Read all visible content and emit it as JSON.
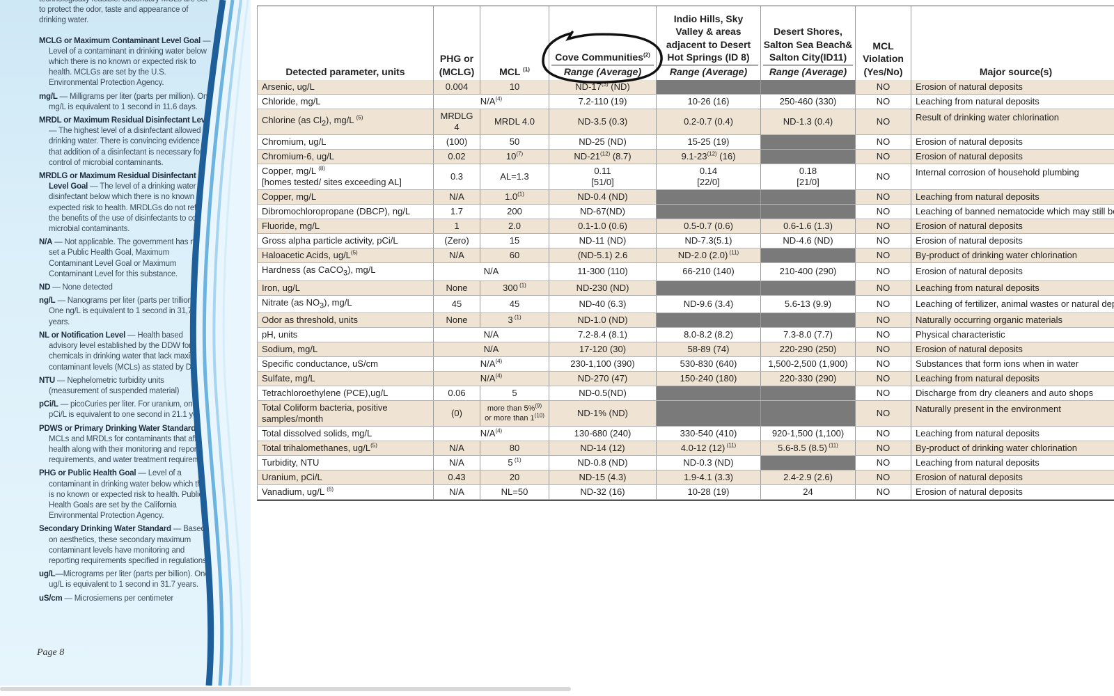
{
  "glossary": {
    "intro": "technologically feasible. Secondary MCLs are set to protect the odor, taste and appearance of drinking water.",
    "entries": [
      {
        "term": "MCLG or Maximum Contaminant Level Goal",
        "text": " — Level of a contaminant in drinking water below which there is no known or expected risk to health. MCLGs are set by the U.S. Environmental Protection Agency."
      },
      {
        "term": "mg/L",
        "text": " — Milligrams per liter (parts per million). One mg/L is equivalent to 1 second in 11.6 days."
      },
      {
        "term": "MRDL or Maximum Residual Disinfectant Level",
        "text": " — The highest level of a disinfectant allowed in drinking water. There is convincing evidence that addition of a disinfectant is necessary for control of microbial contaminants."
      },
      {
        "term": "MRDLG or Maximum Residual Disinfectant Level Goal",
        "text": " — The level of a drinking water disinfectant below which there is no known or expected risk to health. MRDLGs do not reflect the benefits of the use of disinfectants to control microbial contaminants."
      },
      {
        "term": "N/A",
        "text": " — Not applicable. The government has not set a Public Health Goal, Maximum Contaminant Level Goal or Maximum Contaminant Level for this substance."
      },
      {
        "term": "ND",
        "text": " — None detected"
      },
      {
        "term": "ng/L",
        "text": " — Nanograms per liter (parts per trillion). One ng/L is equivalent to 1 second in 31,700 years."
      },
      {
        "term": "NL or Notification Level",
        "text": " — Health based advisory level established by the DDW for chemicals in drinking water that lack maximum contaminant levels (MCLs) as stated by DDW."
      },
      {
        "term": "NTU",
        "text": " — Nephelometric turbidity units (measurement of suspended material)"
      },
      {
        "term": "pCi/L",
        "text": " — picoCuries per liter. For uranium, one pCi/L is equivalent to one second in 21.1 years."
      },
      {
        "term": "PDWS or Primary Drinking Water Standard",
        "text": " — MCLs and MRDLs for contaminants that affect health along with their monitoring and reporting requirements, and water treatment requirement."
      },
      {
        "term": "PHG or Public Health Goal",
        "text": " — Level of a contaminant in drinking water below which there is no known or expected risk to health. Public Health Goals are set by the California Environmental Protection Agency."
      },
      {
        "term": "Secondary Drinking Water Standard",
        "text": " — Based on aesthetics, these secondary maximum contaminant levels have monitoring and reporting requirements specified in regulations."
      },
      {
        "term": "ug/L",
        "text": "—Micrograms per liter (parts per billion). One ug/L is equivalent to 1 second in 31.7 years."
      },
      {
        "term": "uS/cm",
        "text": " — Microsiemens per centimeter"
      }
    ],
    "page_label": "Page 8"
  },
  "table": {
    "headers": {
      "param": "Detected parameter, units",
      "phg_line1": "PHG or",
      "phg_line2": "(MCLG)",
      "mcl": "MCL",
      "mcl_sup": "(1)",
      "cove": "Cove Communities",
      "cove_sup": "(2)",
      "cove_sub": "Range (Average)",
      "indio": "Indio Hills, Sky Valley & areas adjacent to Desert Hot Springs (ID 8)",
      "indio_sub": "Range (Average)",
      "desert": "Desert Shores, Salton Sea Beach& Salton City(ID11)",
      "desert_sub": "Range (Average)",
      "violation_line1": "MCL",
      "violation_line2": "Violation",
      "violation_line3": "(Yes/No)",
      "source": "Major source(s)"
    },
    "rows": [
      {
        "param": "Arsenic, ug/L",
        "phg": "0.004",
        "mcl": "10",
        "cove": "ND-17",
        "cove_sup": "(3)",
        "cove_tail": " (ND)",
        "indio": "",
        "desert": "",
        "indio_gray": true,
        "desert_gray": true,
        "viol": "NO",
        "src": "Erosion of natural deposits"
      },
      {
        "param": "Chloride, mg/L",
        "span": "N/A",
        "span_sup": "(4)",
        "cove": "7.2-110 (19)",
        "indio": "10-26 (16)",
        "desert": "250-460 (330)",
        "viol": "NO",
        "src": "Leaching from natural deposits"
      },
      {
        "param_pre": "Chlorine (as Cl",
        "param_sub": "2",
        "param_post": "), mg/L ",
        "param_sup": "(5)",
        "phg": "MRDLG 4",
        "mcl": "MRDL 4.0",
        "cove": "ND-3.5 (0.3)",
        "indio": "0.2-0.7 (0.4)",
        "desert": "ND-1.3 (0.4)",
        "viol": "NO",
        "src": "Result of drinking water chlorination"
      },
      {
        "param": "Chromium, ug/L",
        "phg": "(100)",
        "mcl": "50",
        "cove": "ND-25 (ND)",
        "indio": "15-25 (19)",
        "desert": "",
        "desert_gray": true,
        "viol": "NO",
        "src": "Erosion of natural deposits"
      },
      {
        "param": "Chromium-6, ug/L",
        "phg": "0.02",
        "mcl": "10",
        "mcl_sup": "(7)",
        "cove": "ND-21",
        "cove_sup": "(12)",
        "cove_tail": " (8.7)",
        "indio": "9.1-23",
        "indio_sup": "(12)",
        "indio_tail": " (16)",
        "desert": "",
        "desert_gray": true,
        "viol": "NO",
        "src": "Erosion of natural deposits"
      },
      {
        "param": "Copper, mg/L ",
        "param_sup": "(8)",
        "param_line2": "[homes tested/ sites exceeding AL]",
        "phg": "0.3",
        "mcl": "AL=1.3",
        "cove": "0.11",
        "cove_line2": "[51/0]",
        "indio": "0.14",
        "indio_line2": "[22/0]",
        "desert": "0.18",
        "desert_line2": "[21/0]",
        "viol": "NO",
        "src": "Internal corrosion of household plumbing"
      },
      {
        "param": "Copper, mg/L",
        "phg": "N/A",
        "mcl": "1.0",
        "mcl_sup": "(1)",
        "cove": "ND-0.4 (ND)",
        "indio": "",
        "desert": "",
        "indio_gray": true,
        "desert_gray": true,
        "viol": "NO",
        "src": "Leaching from natural deposits"
      },
      {
        "param": "Dibromochloropropane (DBCP), ng/L",
        "phg": "1.7",
        "mcl": "200",
        "cove": "ND-67(ND)",
        "indio": "",
        "desert": "",
        "indio_gray": true,
        "desert_gray": true,
        "viol": "NO",
        "src": "Leaching of banned nematocide which may still be"
      },
      {
        "param": "Fluoride, mg/L",
        "phg": "1",
        "mcl": "2.0",
        "cove": "0.1-1.0 (0.6)",
        "indio": "0.5-0.7 (0.6)",
        "desert": "0.6-1.6 (1.3)",
        "viol": "NO",
        "src": "Erosion of natural deposits"
      },
      {
        "param": "Gross alpha particle activity, pCi/L",
        "phg": "(Zero)",
        "mcl": "15",
        "cove": "ND-11 (ND)",
        "indio": "ND-7.3(5.1)",
        "desert": "ND-4.6 (ND)",
        "viol": "NO",
        "src": "Erosion of natural deposits"
      },
      {
        "param": "Haloacetic Acids, ug/L",
        "param_sup": "(5)",
        "phg": "N/A",
        "mcl": "60",
        "cove": "(ND-5.1) 2.6",
        "indio": "ND-2.0 (2.0)",
        "indio_sup": " (11)",
        "desert": "",
        "desert_gray": true,
        "viol": "NO",
        "src": "By-product of drinking water chlorination"
      },
      {
        "param_pre": "Hardness (as CaCO",
        "param_sub": "3",
        "param_post": "), mg/L",
        "span": "N/A",
        "cove": "11-300 (110)",
        "indio": "66-210 (140)",
        "desert": "210-400 (290)",
        "viol": "NO",
        "src": "Erosion of natural deposits"
      },
      {
        "param": "Iron, ug/L",
        "phg": "None",
        "mcl": "300",
        "mcl_sup": " (1)",
        "cove": "ND-230 (ND)",
        "indio": "",
        "desert": "",
        "indio_gray": true,
        "desert_gray": true,
        "viol": "NO",
        "src": "Leaching from natural deposits"
      },
      {
        "param_pre": "Nitrate (as NO",
        "param_sub": "3",
        "param_post": "), mg/L",
        "phg": "45",
        "mcl": "45",
        "cove": "ND-40 (6.3)",
        "indio": "ND-9.6 (3.4)",
        "desert": "5.6-13 (9.9)",
        "viol": "NO",
        "src": "Leaching of fertilizer, animal wastes or natural dep"
      },
      {
        "param": "Odor as threshold, units",
        "phg": "None",
        "mcl": "3",
        "mcl_sup": " (1)",
        "cove": "ND-1.0 (ND)",
        "indio": "",
        "desert": "",
        "indio_gray": true,
        "desert_gray": true,
        "viol": "NO",
        "src": "Naturally occurring organic materials"
      },
      {
        "param": "pH, units",
        "span": "N/A",
        "cove": "7.2-8.4 (8.1)",
        "indio": "8.0-8.2 (8.2)",
        "desert": "7.3-8.0 (7.7)",
        "viol": "NO",
        "src": "Physical characteristic"
      },
      {
        "param": "Sodium, mg/L",
        "span": "N/A",
        "cove": "17-120 (30)",
        "indio": "58-89 (74)",
        "desert": "220-290 (250)",
        "viol": "NO",
        "src": "Erosion of natural deposits"
      },
      {
        "param": "Specific conductance, uS/cm",
        "span": "N/A",
        "span_sup": "(4)",
        "cove": "230-1,100 (390)",
        "indio": "530-830 (640)",
        "desert": "1,500-2,500 (1,900)",
        "viol": "NO",
        "src": "Substances that form ions when in water"
      },
      {
        "param": "Sulfate, mg/L",
        "span": "N/A",
        "span_sup": "(4)",
        "cove": "ND-270 (47)",
        "indio": "150-240 (180)",
        "desert": "220-330 (290)",
        "viol": "NO",
        "src": "Leaching from natural deposits"
      },
      {
        "param": "Tetrachloroethylene (PCE),ug/L",
        "phg": "0.06",
        "mcl": "5",
        "cove": "ND-0.5(ND)",
        "indio": "",
        "desert": "",
        "indio_gray": true,
        "desert_gray": true,
        "viol": "NO",
        "src": "Discharge from dry cleaners and auto shops"
      },
      {
        "param": "Total Coliform bacteria, positive samples/month",
        "phg": "(0)",
        "mcl": "more than 5%",
        "mcl_sup": "(9)",
        "mcl_line2": "or more than 1",
        "mcl_sup2": "(10)",
        "cove": "ND-1% (ND)",
        "indio": "",
        "desert": "",
        "indio_gray": true,
        "desert_gray": true,
        "viol": "NO",
        "src": "Naturally present in the environment"
      },
      {
        "param": "Total dissolved solids, mg/L",
        "span": "N/A",
        "span_sup": "(4)",
        "cove": "130-680 (240)",
        "indio": "330-540 (410)",
        "desert": "920-1,500 (1,100)",
        "viol": "NO",
        "src": "Leaching from natural deposits"
      },
      {
        "param": "Total trihalomethanes, ug/L",
        "param_sup": "(5)",
        "phg": "N/A",
        "mcl": "80",
        "cove": "ND-14 (12)",
        "indio": "4.0-12 (12)",
        "indio_sup": " (11)",
        "desert": "5.6-8.5 (8.5)",
        "desert_sup": " (11)",
        "viol": "NO",
        "src": "By-product of drinking water chlorination"
      },
      {
        "param": "Turbidity, NTU",
        "phg": "N/A",
        "mcl": "5",
        "mcl_sup": " (1)",
        "cove": "ND-0.8 (ND)",
        "indio": "ND-0.3 (ND)",
        "desert": "",
        "desert_gray": true,
        "viol": "NO",
        "src": "Leaching from natural deposits"
      },
      {
        "param": "Uranium, pCi/L",
        "phg": "0.43",
        "mcl": "20",
        "cove": "ND-15 (4.3)",
        "indio": "1.9-4.1 (3.3)",
        "desert": "2.4-2.9 (2.6)",
        "viol": "NO",
        "src": "Erosion of natural deposits"
      },
      {
        "param": "Vanadium, ug/L ",
        "param_sup": "(6)",
        "phg": "N/A",
        "mcl": "NL=50",
        "cove": "ND-32 (16)",
        "indio": "10-28 (19)",
        "desert": "24",
        "viol": "NO",
        "src": "Erosion of natural deposits"
      }
    ]
  }
}
